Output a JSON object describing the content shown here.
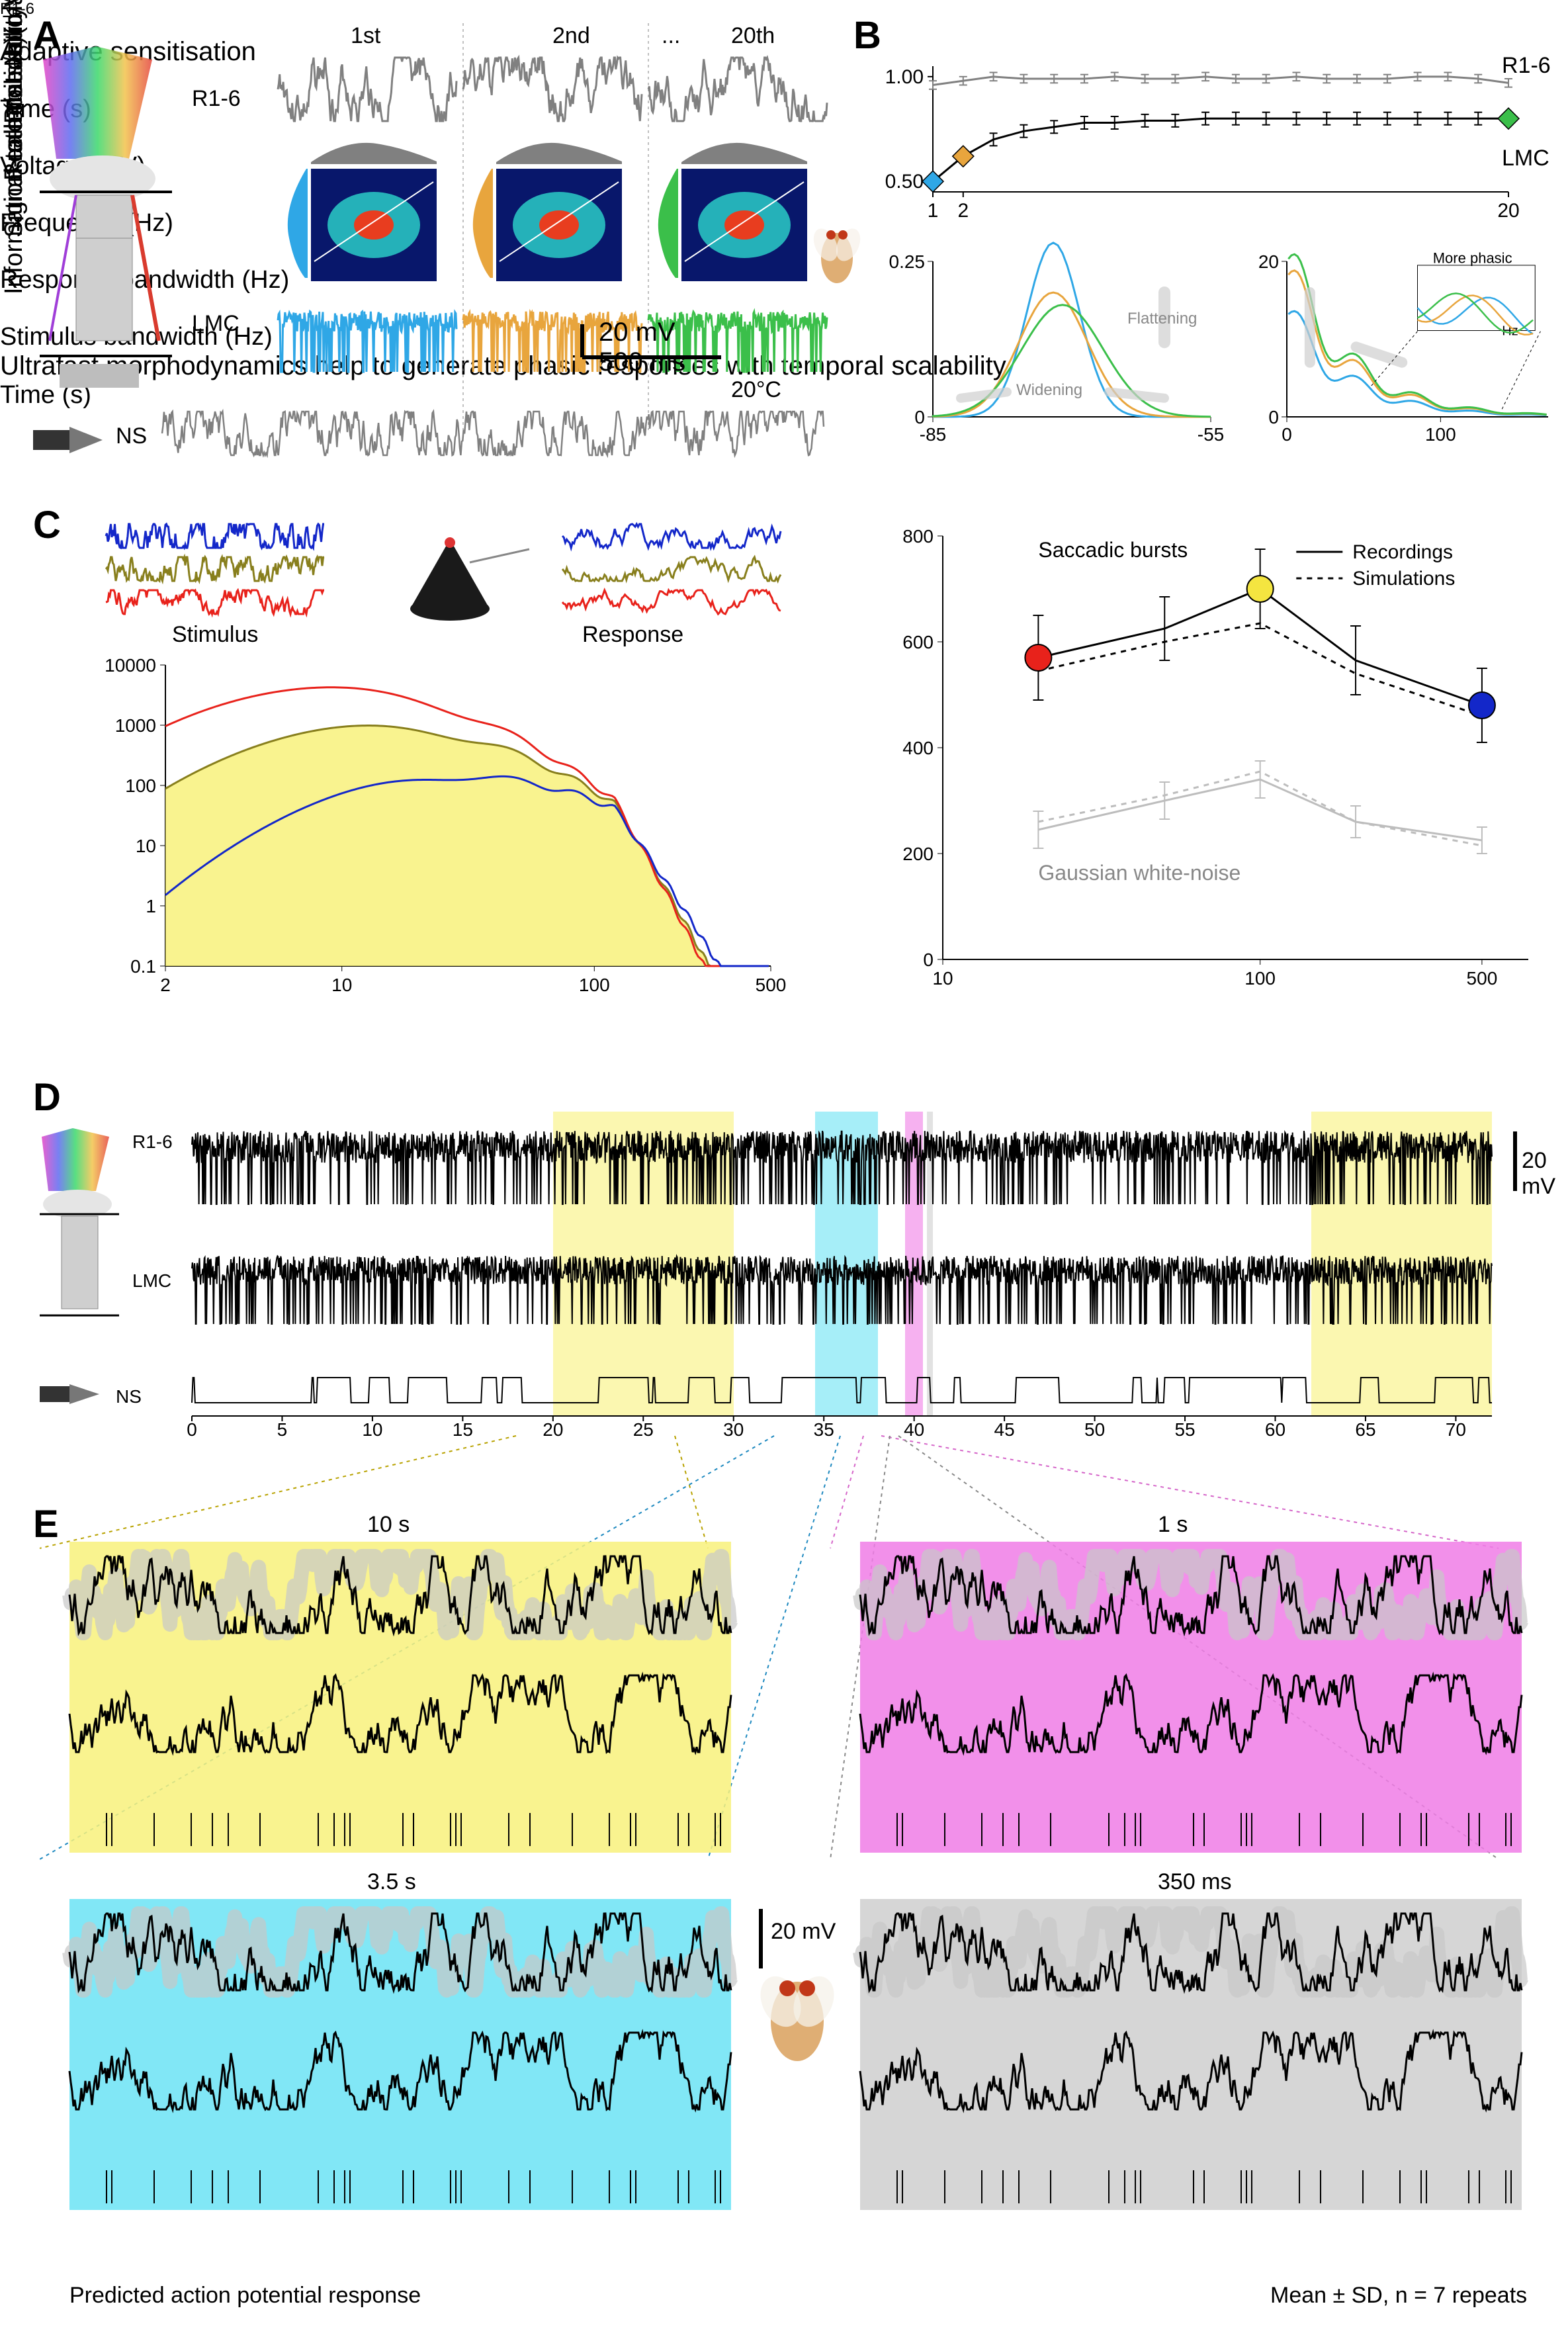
{
  "panelA": {
    "label": "A",
    "labels": {
      "R16": "R1-6",
      "LMC": "LMC",
      "NS": "NS",
      "col1": "1st",
      "col2": "2nd",
      "ellipsis": "...",
      "col20": "20th",
      "scale_v": "20 mV",
      "scale_t": "500 ms",
      "temp": "20°C"
    },
    "colors": {
      "R16": "#808080",
      "wave1": "#2fa7e6",
      "wave2": "#e8a53d",
      "wave20": "#3bbf4a",
      "NS": "#808080",
      "heatmap_bg": "#08176b",
      "heatmap_mid": "#29c2c2",
      "heatmap_hot": "#e83d1f",
      "hist_col1_side": "#2fa7e6",
      "hist_col2_side": "#e8a53d",
      "hist_col20_side": "#3bbf4a",
      "hist_top": "#808080"
    },
    "scale_bar": {
      "mv": 20,
      "ms": 500
    },
    "heatmap_axes": {
      "x": "R1-6",
      "y": "LMC"
    }
  },
  "panelB": {
    "label": "B",
    "title": "Adaptive sensitisation",
    "y_label": "Normalised SD",
    "x_label": "Time (s)",
    "r_label": "R1-6",
    "lmc_label": "LMC",
    "y_ticks": [
      0.5,
      1.0
    ],
    "x_ticks": [
      1,
      2,
      20
    ],
    "series": {
      "R16": {
        "color": "#808080",
        "x": [
          1,
          2,
          3,
          4,
          5,
          6,
          7,
          8,
          9,
          10,
          11,
          12,
          13,
          14,
          15,
          16,
          17,
          18,
          19,
          20
        ],
        "y": [
          0.96,
          0.98,
          1.0,
          0.99,
          0.99,
          0.99,
          1.0,
          0.99,
          0.99,
          1.0,
          0.99,
          0.99,
          1.0,
          0.99,
          0.99,
          0.99,
          1.0,
          1.0,
          0.99,
          0.97
        ],
        "err": 0.02
      },
      "LMC": {
        "color": "#000000",
        "x": [
          1,
          2,
          3,
          4,
          5,
          6,
          7,
          8,
          9,
          10,
          11,
          12,
          13,
          14,
          15,
          16,
          17,
          18,
          19,
          20
        ],
        "y": [
          0.5,
          0.62,
          0.7,
          0.74,
          0.76,
          0.78,
          0.78,
          0.79,
          0.79,
          0.8,
          0.8,
          0.8,
          0.8,
          0.8,
          0.8,
          0.8,
          0.8,
          0.8,
          0.8,
          0.8
        ],
        "err": 0.03
      }
    },
    "markers": [
      {
        "x": 1,
        "y": 0.5,
        "shape": "diamond",
        "color": "#2fa7e6"
      },
      {
        "x": 2,
        "y": 0.62,
        "shape": "diamond",
        "color": "#e8a53d"
      },
      {
        "x": 20,
        "y": 0.8,
        "shape": "diamond",
        "color": "#3bbf4a"
      }
    ],
    "sub_left": {
      "y_label": "Probability",
      "x_label": "Voltage (mV)",
      "y_ticks": [
        0,
        0.25
      ],
      "x_ticks": [
        -85,
        -55
      ],
      "anno1": "Widening",
      "anno2": "Flattening",
      "curves": {
        "c1": {
          "color": "#2fa7e6",
          "peak_x": -72,
          "peak_y": 0.28
        },
        "c2": {
          "color": "#e8a53d",
          "peak_x": -72,
          "peak_y": 0.2
        },
        "c20": {
          "color": "#3bbf4a",
          "peak_x": -71,
          "peak_y": 0.18
        }
      }
    },
    "sub_right": {
      "y_label": "Reallocation (mV)",
      "x_label": "Frequency (Hz)",
      "y_ticks": [
        0,
        20
      ],
      "x_ticks": [
        0,
        100
      ],
      "inset_label": "More phasic",
      "inset_x_label": "Hz",
      "curves": {
        "c1": {
          "color": "#2fa7e6"
        },
        "c2": {
          "color": "#e8a53d"
        },
        "c20": {
          "color": "#3bbf4a"
        }
      }
    }
  },
  "panelC": {
    "label": "C",
    "left": {
      "stim_label": "Stimulus",
      "resp_label": "Response",
      "y_label": "Signal-to-noise ratio",
      "x_label": "Response bandwidth (Hz)",
      "y_ticks": [
        0.1,
        1,
        10,
        100,
        1000,
        10000
      ],
      "x_ticks": [
        2,
        10,
        100,
        500
      ],
      "fill_color": "#f8f17b",
      "curves": {
        "red": {
          "color": "#e8221b"
        },
        "olive": {
          "color": "#887f1d"
        },
        "blue": {
          "color": "#1327c9"
        }
      }
    },
    "right": {
      "y_label": "Information rate (bits/s)",
      "x_label": "Stimulus bandwidth (Hz)",
      "y_ticks": [
        0,
        200,
        400,
        600,
        800
      ],
      "x_ticks": [
        10,
        100,
        500
      ],
      "legend": {
        "recordings": "Recordings",
        "simulations": "Simulations"
      },
      "upper_label": "Saccadic bursts",
      "lower_label": "Gaussian white-noise",
      "upper_solid": {
        "color": "#000000",
        "x": [
          20,
          50,
          100,
          200,
          500
        ],
        "y": [
          570,
          625,
          700,
          565,
          480
        ],
        "err": [
          80,
          60,
          75,
          65,
          70
        ]
      },
      "upper_dashed": {
        "color": "#000000",
        "x": [
          20,
          50,
          100,
          200,
          500
        ],
        "y": [
          545,
          600,
          635,
          540,
          460
        ]
      },
      "lower_solid": {
        "color": "#bdbdbd",
        "x": [
          20,
          50,
          100,
          200,
          500
        ],
        "y": [
          245,
          300,
          340,
          260,
          225
        ],
        "err": [
          35,
          35,
          35,
          30,
          25
        ]
      },
      "lower_dashed": {
        "color": "#bdbdbd",
        "x": [
          20,
          50,
          100,
          200,
          500
        ],
        "y": [
          260,
          310,
          355,
          260,
          215
        ]
      },
      "markers": [
        {
          "x": 20,
          "y": 570,
          "color": "#e8221b"
        },
        {
          "x": 100,
          "y": 700,
          "color": "#f4e540"
        },
        {
          "x": 500,
          "y": 480,
          "color": "#1327c9"
        }
      ]
    }
  },
  "panelD": {
    "label": "D",
    "title": "Ultrafast morphodynamics help to generate phasic responses with temporal scalability",
    "row_labels": {
      "R16": "R1-6",
      "LMC": "LMC",
      "NS": "NS"
    },
    "scale_v": "20 mV",
    "x_label": "Time (s)",
    "x_ticks": [
      0,
      5,
      10,
      15,
      20,
      25,
      30,
      35,
      40,
      45,
      50,
      55,
      60,
      65,
      70
    ],
    "x_range": [
      0,
      72
    ],
    "highlights": [
      {
        "start": 20,
        "end": 30,
        "color": "#f8f17b"
      },
      {
        "start": 34.5,
        "end": 38,
        "color": "#6be3f4"
      },
      {
        "start": 39.5,
        "end": 40.5,
        "color": "#f07de6"
      },
      {
        "start": 40.7,
        "end": 41.05,
        "color": "#cfcfcf"
      },
      {
        "start": 62,
        "end": 72,
        "color": "#f8f17b"
      }
    ]
  },
  "panelE": {
    "label": "E",
    "scale_v": "20 mV",
    "footer_left": "Predicted action potential response",
    "footer_right": "Mean ± SD, n = 7 repeats",
    "blocks": {
      "b1": {
        "title": "10 s",
        "color": "#f8f17b"
      },
      "b2": {
        "title": "1 s",
        "color": "#f07de6"
      },
      "b3": {
        "title": "3.5 s",
        "color": "#6be3f4"
      },
      "b4": {
        "title": "350 ms",
        "color": "#cfcfcf"
      }
    }
  },
  "fonts": {
    "panel_label_pt": 46,
    "title_pt": 30,
    "axis_pt": 30,
    "tick_pt": 26
  },
  "colors": {
    "bg": "#ffffff",
    "text": "#000000",
    "grid": "#000000"
  }
}
